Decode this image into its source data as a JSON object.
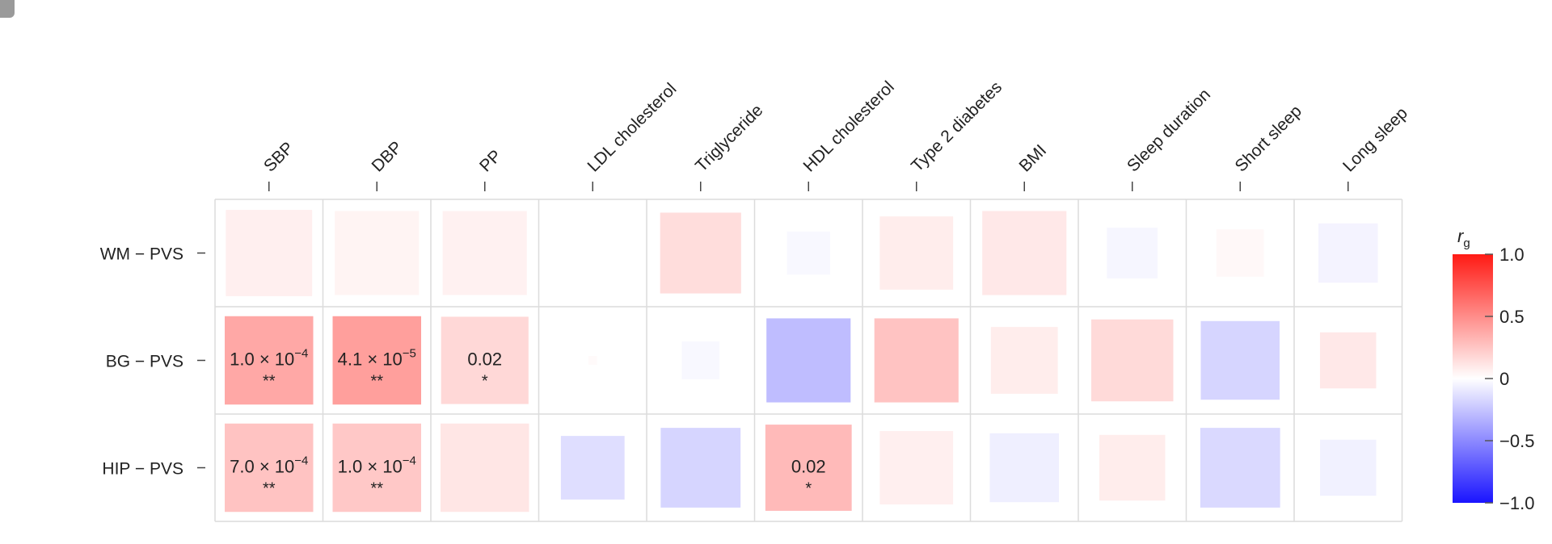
{
  "chart_data": {
    "type": "heatmap",
    "title": "",
    "xlabel": "",
    "ylabel": "",
    "columns": [
      "SBP",
      "DBP",
      "PP",
      "LDL cholesterol",
      "Triglyceride",
      "HDL cholesterol",
      "Type 2 diabetes",
      "BMI",
      "Sleep duration",
      "Short sleep",
      "Long sleep"
    ],
    "rows": [
      "WM − PVS",
      "BG − PVS",
      "HIP − PVS"
    ],
    "cells": [
      [
        {
          "rg": 0.07,
          "magnitude": 0.8
        },
        {
          "rg": 0.05,
          "magnitude": 0.78
        },
        {
          "rg": 0.06,
          "magnitude": 0.78
        },
        {
          "rg": 0.0,
          "magnitude": 0.0
        },
        {
          "rg": 0.15,
          "magnitude": 0.75
        },
        {
          "rg": -0.03,
          "magnitude": 0.4
        },
        {
          "rg": 0.08,
          "magnitude": 0.68
        },
        {
          "rg": 0.1,
          "magnitude": 0.78
        },
        {
          "rg": -0.04,
          "magnitude": 0.47
        },
        {
          "rg": 0.03,
          "magnitude": 0.44
        },
        {
          "rg": -0.05,
          "magnitude": 0.55
        }
      ],
      [
        {
          "rg": 0.38,
          "magnitude": 0.82,
          "p": "1.0 × 10",
          "exp": "−4",
          "sig": "**"
        },
        {
          "rg": 0.42,
          "magnitude": 0.82,
          "p": "4.1 × 10",
          "exp": "−5",
          "sig": "**"
        },
        {
          "rg": 0.17,
          "magnitude": 0.81,
          "p": "0.02",
          "sig": "*"
        },
        {
          "rg": 0.02,
          "magnitude": 0.08
        },
        {
          "rg": -0.03,
          "magnitude": 0.35
        },
        {
          "rg": -0.28,
          "magnitude": 0.78
        },
        {
          "rg": 0.26,
          "magnitude": 0.78
        },
        {
          "rg": 0.08,
          "magnitude": 0.62
        },
        {
          "rg": 0.16,
          "magnitude": 0.76
        },
        {
          "rg": -0.18,
          "magnitude": 0.73
        },
        {
          "rg": 0.1,
          "magnitude": 0.52
        }
      ],
      [
        {
          "rg": 0.26,
          "magnitude": 0.82,
          "p": "7.0 × 10",
          "exp": "−4",
          "sig": "**"
        },
        {
          "rg": 0.24,
          "magnitude": 0.82,
          "p": "1.0 × 10",
          "exp": "−4",
          "sig": "**"
        },
        {
          "rg": 0.11,
          "magnitude": 0.82
        },
        {
          "rg": -0.14,
          "magnitude": 0.59
        },
        {
          "rg": -0.18,
          "magnitude": 0.74
        },
        {
          "rg": 0.3,
          "magnitude": 0.8,
          "p": "0.02",
          "sig": "*"
        },
        {
          "rg": 0.07,
          "magnitude": 0.68
        },
        {
          "rg": -0.07,
          "magnitude": 0.64
        },
        {
          "rg": 0.08,
          "magnitude": 0.61
        },
        {
          "rg": -0.16,
          "magnitude": 0.74
        },
        {
          "rg": -0.06,
          "magnitude": 0.52
        }
      ]
    ],
    "colorbar": {
      "label": "r",
      "label_sub": "g",
      "ticks": [
        1.0,
        0.5,
        0,
        -0.5,
        -1.0
      ],
      "tick_labels": [
        "1.0",
        "0.5",
        "0",
        "−0.5",
        "−1.0"
      ],
      "range": [
        -1.0,
        1.0
      ],
      "colors": {
        "max": "#ff1a14",
        "mid": "#ffffff",
        "min": "#1a14ff"
      }
    },
    "grid": true
  }
}
